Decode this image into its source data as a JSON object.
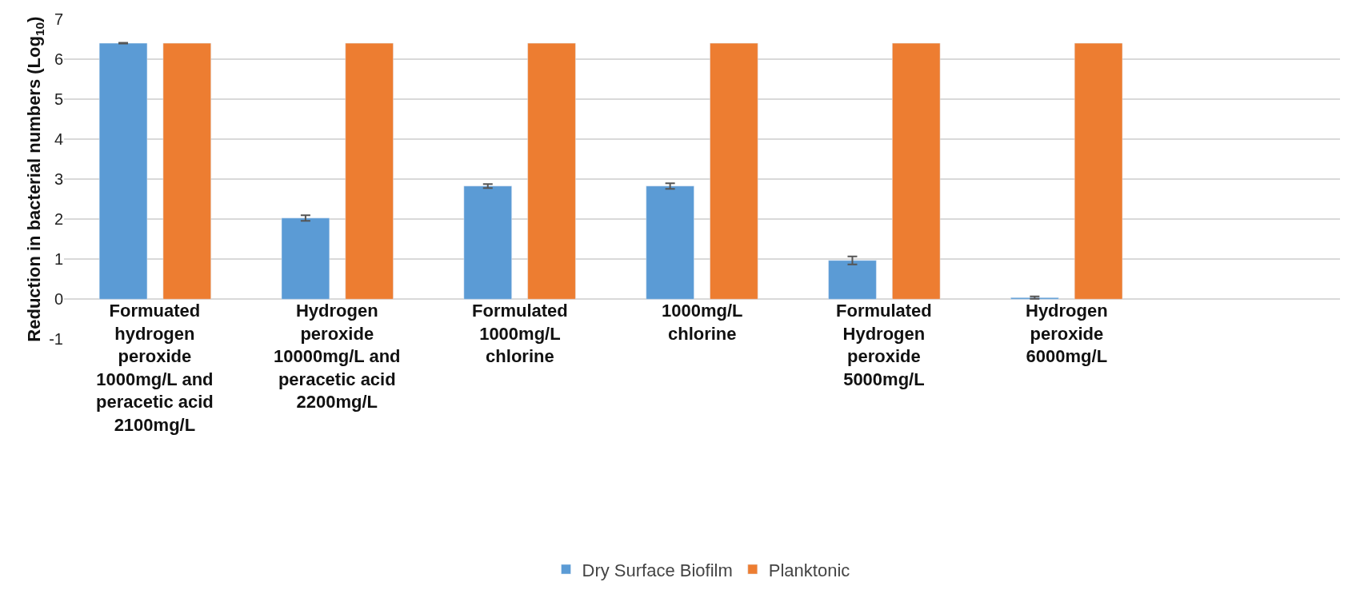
{
  "chart_data": {
    "type": "bar",
    "ylabel": "Reduction in bacterial numbers (Log$_{10}$)",
    "categories": [
      "Formuated hydrogen peroxide 1000mg/L and peracetic acid 2100mg/L",
      "Hydrogen peroxide 10000mg/L and peracetic acid 2200mg/L",
      "Formulated 1000mg/L chlorine",
      "1000mg/L chlorine",
      "Formulated Hydrogen peroxide 5000mg/L",
      "Hydrogen peroxide 6000mg/L",
      null
    ],
    "series": [
      {
        "name": "Dry Surface Biofilm",
        "color": "#5b9bd5",
        "values": [
          6.4,
          2.03,
          2.83,
          2.83,
          0.97,
          0.04,
          null
        ],
        "errors": [
          0.01,
          0.07,
          0.05,
          0.07,
          0.1,
          0.03,
          null
        ]
      },
      {
        "name": "Planktonic",
        "color": "#ed7d31",
        "values": [
          6.4,
          6.4,
          6.4,
          6.4,
          6.4,
          6.4,
          null
        ]
      }
    ],
    "ylim": [
      -1,
      7
    ],
    "yticks": [
      -1,
      0,
      1,
      2,
      3,
      4,
      5,
      6,
      7
    ],
    "grid": "y",
    "legend": "bottom"
  }
}
